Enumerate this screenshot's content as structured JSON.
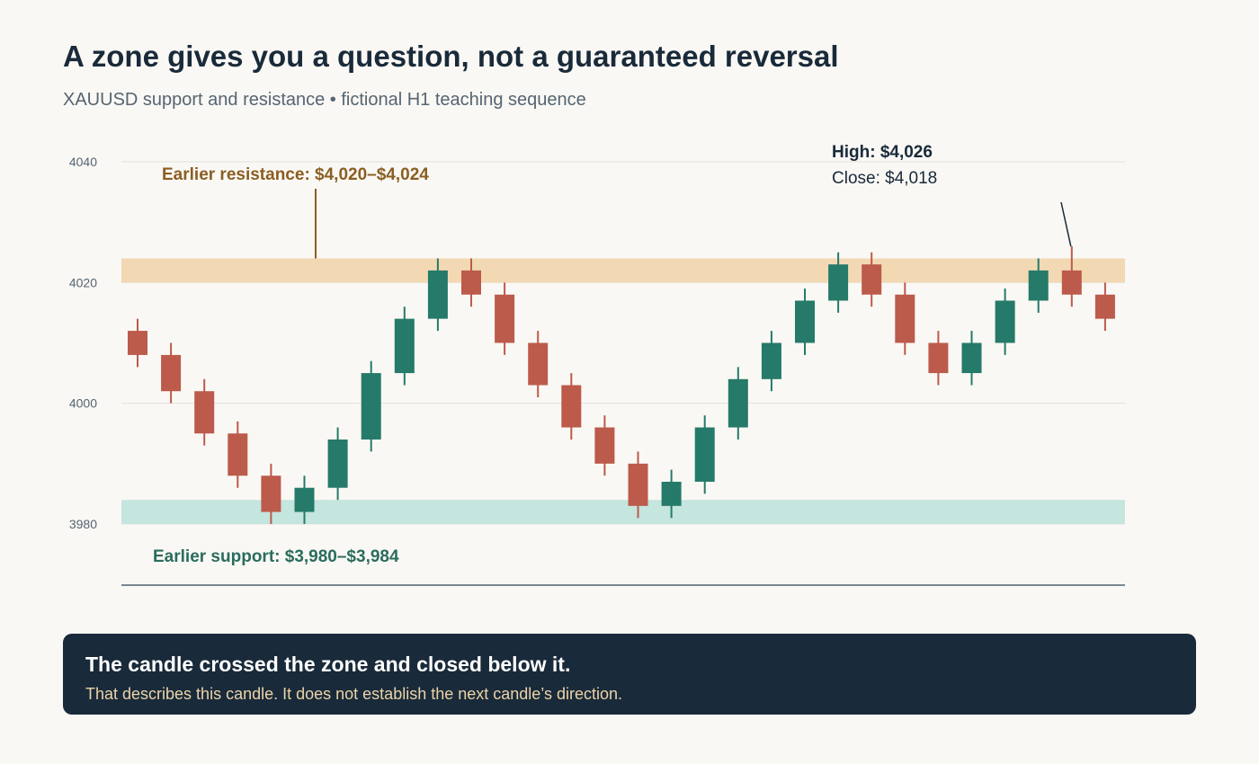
{
  "title": "A zone gives you a question, not a guaranteed reversal",
  "subtitle": "XAUUSD support and resistance • fictional H1 teaching sequence",
  "chart_data": {
    "type": "candlestick",
    "ylim": [
      3970,
      4040
    ],
    "yticks": [
      3980,
      4000,
      4020,
      4040
    ],
    "grid": true,
    "colors": {
      "bull": "#257a69",
      "bear": "#bc5a4b",
      "resistance_zone": "#f2d9b4",
      "support_zone": "#c5e5df",
      "resistance_text": "#8a5e22",
      "support_text": "#2a6c5e",
      "axis": "#7a8792",
      "grid": "#e4e2dd"
    },
    "candles": [
      {
        "o": 4012,
        "h": 4014,
        "l": 4006,
        "c": 4008
      },
      {
        "o": 4008,
        "h": 4010,
        "l": 4000,
        "c": 4002
      },
      {
        "o": 4002,
        "h": 4004,
        "l": 3993,
        "c": 3995
      },
      {
        "o": 3995,
        "h": 3997,
        "l": 3986,
        "c": 3988
      },
      {
        "o": 3988,
        "h": 3990,
        "l": 3980,
        "c": 3982
      },
      {
        "o": 3982,
        "h": 3988,
        "l": 3980,
        "c": 3986
      },
      {
        "o": 3986,
        "h": 3996,
        "l": 3984,
        "c": 3994
      },
      {
        "o": 3994,
        "h": 4007,
        "l": 3992,
        "c": 4005
      },
      {
        "o": 4005,
        "h": 4016,
        "l": 4003,
        "c": 4014
      },
      {
        "o": 4014,
        "h": 4024,
        "l": 4012,
        "c": 4022
      },
      {
        "o": 4022,
        "h": 4024,
        "l": 4016,
        "c": 4018
      },
      {
        "o": 4018,
        "h": 4020,
        "l": 4008,
        "c": 4010
      },
      {
        "o": 4010,
        "h": 4012,
        "l": 4001,
        "c": 4003
      },
      {
        "o": 4003,
        "h": 4005,
        "l": 3994,
        "c": 3996
      },
      {
        "o": 3996,
        "h": 3998,
        "l": 3988,
        "c": 3990
      },
      {
        "o": 3990,
        "h": 3992,
        "l": 3981,
        "c": 3983
      },
      {
        "o": 3983,
        "h": 3989,
        "l": 3981,
        "c": 3987
      },
      {
        "o": 3987,
        "h": 3998,
        "l": 3985,
        "c": 3996
      },
      {
        "o": 3996,
        "h": 4006,
        "l": 3994,
        "c": 4004
      },
      {
        "o": 4004,
        "h": 4012,
        "l": 4002,
        "c": 4010
      },
      {
        "o": 4010,
        "h": 4019,
        "l": 4008,
        "c": 4017
      },
      {
        "o": 4017,
        "h": 4025,
        "l": 4015,
        "c": 4023
      },
      {
        "o": 4023,
        "h": 4025,
        "l": 4016,
        "c": 4018
      },
      {
        "o": 4018,
        "h": 4020,
        "l": 4008,
        "c": 4010
      },
      {
        "o": 4010,
        "h": 4012,
        "l": 4003,
        "c": 4005
      },
      {
        "o": 4005,
        "h": 4012,
        "l": 4003,
        "c": 4010
      },
      {
        "o": 4010,
        "h": 4019,
        "l": 4008,
        "c": 4017
      },
      {
        "o": 4017,
        "h": 4024,
        "l": 4015,
        "c": 4022
      },
      {
        "o": 4022,
        "h": 4026,
        "l": 4016,
        "c": 4018
      },
      {
        "o": 4018,
        "h": 4020,
        "l": 4012,
        "c": 4014
      }
    ],
    "zones": [
      {
        "name": "resistance",
        "from": 4020,
        "to": 4024,
        "label": "Earlier resistance: $4,020–$4,024"
      },
      {
        "name": "support",
        "from": 3980,
        "to": 3984,
        "label": "Earlier support: $3,980–$3,984"
      }
    ],
    "annotation": {
      "candle_index": 28,
      "high_text": "High: $4,026",
      "close_text": "Close: $4,018"
    }
  },
  "callout": {
    "heading": "The candle crossed the zone and closed below it.",
    "text": "That describes this candle. It does not establish the next candle’s direction."
  }
}
